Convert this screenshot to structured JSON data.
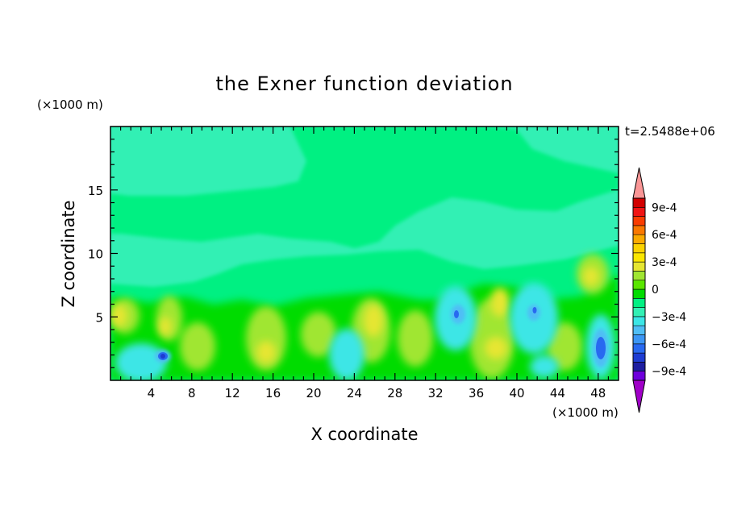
{
  "chart_data": {
    "type": "heatmap",
    "title": "the Exner function deviation",
    "xlabel": "X coordinate",
    "ylabel": "Z coordinate",
    "x_unit": "(×1000 m)",
    "y_unit": "(×1000 m)",
    "time_label": "t=2.5488e+06",
    "xlim": [
      0,
      50
    ],
    "ylim": [
      0,
      20
    ],
    "x_ticks": [
      4,
      8,
      12,
      16,
      20,
      24,
      28,
      32,
      36,
      40,
      44,
      48
    ],
    "y_ticks": [
      5,
      10,
      15
    ],
    "colorbar": {
      "levels": [
        -0.0011,
        -0.001,
        -0.0009,
        -0.0008,
        -0.0007,
        -0.0006,
        -0.0005,
        -0.0004,
        -0.0003,
        -0.0002,
        -0.0001,
        0,
        0.0001,
        0.0002,
        0.0003,
        0.0004,
        0.0005,
        0.0006,
        0.0007,
        0.0008,
        0.0009,
        0.001,
        0.0011
      ],
      "labels": [
        {
          "value": 0.0009,
          "text": "9e-4"
        },
        {
          "value": 0.0006,
          "text": "6e-4"
        },
        {
          "value": 0.0003,
          "text": "3e-4"
        },
        {
          "value": 0,
          "text": "0"
        },
        {
          "value": -0.0003,
          "text": "−3e-4"
        },
        {
          "value": -0.0006,
          "text": "−6e-4"
        },
        {
          "value": -0.0009,
          "text": "−9e-4"
        }
      ],
      "colors": [
        "#a000c8",
        "#6e00dc",
        "#1e1ea0",
        "#1e3cd2",
        "#2869f0",
        "#3c96f5",
        "#50bef5",
        "#3ce6e6",
        "#32f0b4",
        "#00f082",
        "#00dc00",
        "#5ae600",
        "#a0e632",
        "#e6e632",
        "#fae600",
        "#fad200",
        "#faaa00",
        "#fa7800",
        "#fa3c00",
        "#f01414",
        "#d20000",
        "#fa9696"
      ]
    },
    "field_features": [
      {
        "x": 5.3,
        "z": 2.0,
        "level": -0.0006
      },
      {
        "x": 34,
        "z": 5.2,
        "level": -0.0004
      },
      {
        "x": 41.5,
        "z": 5.5,
        "level": -0.0004
      },
      {
        "x": 49,
        "z": 2.8,
        "level": -0.0005
      },
      {
        "x": 26,
        "z": 5.0,
        "level": 0.0003
      },
      {
        "x": 38,
        "z": 6.5,
        "level": 0.0003
      },
      {
        "x": 48,
        "z": 8.5,
        "level": 0.0002
      },
      {
        "x": 25,
        "z": 15,
        "level": 0.0001
      }
    ]
  }
}
